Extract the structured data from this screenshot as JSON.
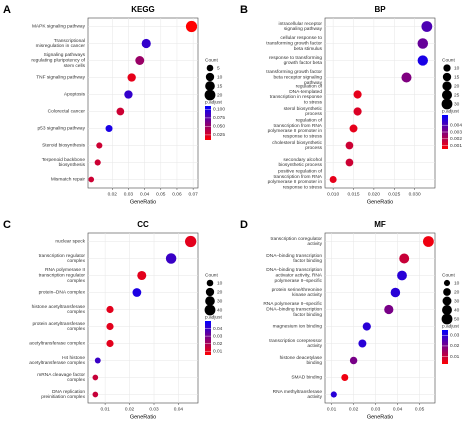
{
  "chart_data": [
    {
      "type": "scatter",
      "panel": "A",
      "title": "KEGG",
      "x_label": "GeneRatio",
      "size_label": "Count",
      "color_label": "p.adjust",
      "categories": [
        "MAPK signaling pathway",
        "Transcriptional misregulation in cancer",
        "Signaling pathways regulating pluripotency of stem cells",
        "TNF signaling pathway",
        "Apoptosis",
        "Colorectal cancer",
        "p53 signaling pathway",
        "Steroid biosynthesis",
        "Terpenoid backbone biosynthesis",
        "Mismatch repair"
      ],
      "x": [
        0.069,
        0.041,
        0.037,
        0.032,
        0.03,
        0.025,
        0.018,
        0.012,
        0.011,
        0.007
      ],
      "sizes": [
        22,
        13,
        12,
        10,
        10,
        8,
        6,
        4,
        4,
        3
      ],
      "padj": [
        0.01,
        0.09,
        0.05,
        0.02,
        0.09,
        0.03,
        0.1,
        0.03,
        0.03,
        0.03
      ],
      "xlim": [
        0.005,
        0.073
      ],
      "xticks": [
        0.02,
        0.03,
        0.04,
        0.05,
        0.06,
        0.07
      ],
      "size_ticks": [
        5,
        10,
        15,
        20
      ],
      "color_lim": [
        0.01,
        0.11
      ],
      "color_ticks": [
        0.025,
        {
          "value": 0.05,
          "label": "0.050"
        },
        0.075,
        {
          "value": 0.1,
          "label": "0.100"
        }
      ],
      "colorscale": [
        "#ff0000",
        "#0000ff"
      ]
    },
    {
      "type": "scatter",
      "panel": "B",
      "title": "BP",
      "x_label": "GeneRatio",
      "size_label": "Count",
      "color_label": "p.adjust",
      "categories": [
        "intracellular receptor signaling pathway",
        "cellular response to transforming growth factor beta stimulus",
        "response to transforming growth factor beta",
        "transforming growth factor beta receptor signaling pathway",
        "regulation of DNA-templated transcription in response to stress",
        "sterol biosynthetic process",
        "regulation of transcription from RNA polymerase II promoter in response to stress",
        "cholesterol biosynthetic process",
        "secondary alcohol biosynthetic process",
        "positive regulation of transcription from RNA polymerase II promoter in response to stress"
      ],
      "x": [
        0.033,
        0.032,
        0.032,
        0.028,
        0.016,
        0.016,
        0.015,
        0.014,
        0.014,
        0.01
      ],
      "sizes": [
        30,
        28,
        27,
        25,
        14,
        14,
        13,
        12,
        12,
        9
      ],
      "padj": [
        0.004,
        0.0035,
        0.005,
        0.003,
        0.001,
        0.0012,
        0.001,
        0.0015,
        0.0015,
        0.001
      ],
      "xlim": [
        0.008,
        0.035
      ],
      "xticks": [
        {
          "value": 0.01,
          "label": "0.010"
        },
        0.015,
        {
          "value": 0.02,
          "label": "0.020"
        },
        0.025,
        {
          "value": 0.03,
          "label": "0.030"
        }
      ],
      "size_ticks": [
        10,
        15,
        20,
        25,
        30
      ],
      "color_lim": [
        0.0005,
        0.0055
      ],
      "color_ticks": [
        0.001,
        0.002,
        0.003,
        0.004
      ],
      "colorscale": [
        "#ff0000",
        "#0000ff"
      ]
    },
    {
      "type": "scatter",
      "panel": "C",
      "title": "CC",
      "x_label": "GeneRatio",
      "size_label": "Count",
      "color_label": "p.adjust",
      "categories": [
        "nuclear speck",
        "transcription regulator complex",
        "RNA polymerase II transcription regulator complex",
        "protein–DNA complex",
        "histone acetyltransferase complex",
        "protein acetyltransferase complex",
        "acetyltransferase complex",
        "H4 histone acetyltransferase complex",
        "mRNA cleavage factor complex",
        "DNA replication preinitiation complex"
      ],
      "x": [
        0.045,
        0.037,
        0.025,
        0.023,
        0.012,
        0.012,
        0.012,
        0.007,
        0.006,
        0.006
      ],
      "sizes": [
        45,
        37,
        25,
        23,
        13,
        13,
        13,
        7,
        6,
        6
      ],
      "padj": [
        0.01,
        0.04,
        0.01,
        0.045,
        0.01,
        0.01,
        0.01,
        0.04,
        0.015,
        0.015
      ],
      "xlim": [
        0.003,
        0.048
      ],
      "xticks": [
        0.01,
        0.02,
        0.03,
        0.04
      ],
      "size_ticks": [
        10,
        20,
        30,
        40
      ],
      "color_lim": [
        0.005,
        0.05
      ],
      "color_ticks": [
        0.01,
        0.02,
        0.03,
        0.04
      ],
      "colorscale": [
        "#ff0000",
        "#0000ff"
      ]
    },
    {
      "type": "scatter",
      "panel": "D",
      "title": "MF",
      "x_label": "GeneRatio",
      "size_label": "Count",
      "color_label": "p.adjust",
      "categories": [
        "transcription coregulator activity",
        "DNA–binding transcription factor binding",
        "DNA–binding transcription activator activity, RNA polymerase II–specific",
        "protein serine/threonine kinase activity",
        "RNA polymerase II–specific DNA–binding transcription factor binding",
        "magnesium ion binding",
        "transcription corepressor activity",
        "histone deacetylase binding",
        "SMAD binding",
        "RNA methyltransferase activity"
      ],
      "x": [
        0.054,
        0.043,
        0.042,
        0.039,
        0.036,
        0.026,
        0.024,
        0.02,
        0.016,
        0.011
      ],
      "sizes": [
        50,
        40,
        39,
        36,
        33,
        24,
        22,
        18,
        15,
        10
      ],
      "padj": [
        0.005,
        0.01,
        0.03,
        0.03,
        0.02,
        0.03,
        0.03,
        0.02,
        0.005,
        0.03
      ],
      "xlim": [
        0.007,
        0.057
      ],
      "xticks": [
        0.01,
        0.02,
        0.03,
        0.04,
        0.05
      ],
      "size_ticks": [
        10,
        20,
        30,
        40,
        50
      ],
      "color_lim": [
        0.003,
        0.035
      ],
      "color_ticks": [
        0.01,
        0.02,
        0.03
      ],
      "colorscale": [
        "#ff0000",
        "#0000ff"
      ]
    }
  ]
}
